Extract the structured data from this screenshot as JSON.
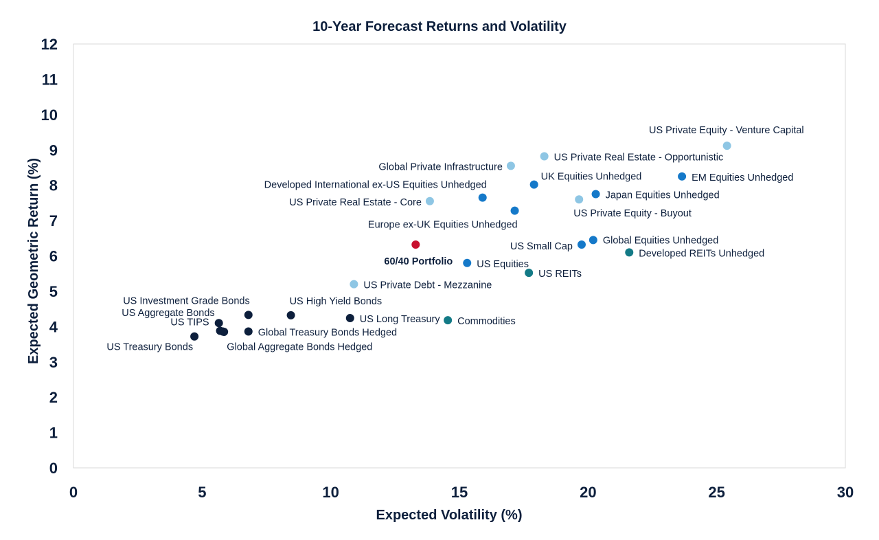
{
  "chart_data": {
    "type": "scatter",
    "title": "10-Year Forecast Returns and Volatility",
    "xlabel": "Expected Volatility (%)",
    "ylabel": "Expected Geometric Return (%)",
    "xlim": [
      0,
      30
    ],
    "ylim": [
      0,
      12
    ],
    "x_ticks": [
      "0",
      "5",
      "10",
      "15",
      "20",
      "25",
      "30"
    ],
    "y_ticks": [
      "0",
      "1",
      "2",
      "3",
      "4",
      "5",
      "6",
      "7",
      "8",
      "9",
      "10",
      "11",
      "12"
    ],
    "grid": false,
    "colors": {
      "fixed_income": "#0d1f3c",
      "real_assets": "#137a86",
      "public_equities": "#1579c9",
      "private_markets": "#8ec6e4",
      "portfolio": "#c8102e",
      "text": "#0d1f3c",
      "frame": "#d9d9d9"
    },
    "points": [
      {
        "label": "US Treasury Bonds",
        "x": 4.7,
        "y": 3.72,
        "color_key": "fixed_income",
        "bold": false
      },
      {
        "label": "US TIPS",
        "x": 5.7,
        "y": 3.88,
        "color_key": "fixed_income",
        "bold": false
      },
      {
        "label": "",
        "x": 5.85,
        "y": 3.85,
        "color_key": "fixed_income",
        "bold": false
      },
      {
        "label": "US Aggregate Bonds",
        "x": 5.65,
        "y": 4.1,
        "color_key": "fixed_income",
        "bold": false
      },
      {
        "label": "US Investment Grade Bonds",
        "x": 6.8,
        "y": 4.33,
        "color_key": "fixed_income",
        "bold": false
      },
      {
        "label": "Global Treasury Bonds Hedged",
        "x": 6.8,
        "y": 3.86,
        "color_key": "fixed_income",
        "bold": false
      },
      {
        "label": "Global Aggregate Bonds Hedged",
        "x": 5.8,
        "y": 3.86,
        "color_key": "fixed_income",
        "bold": false
      },
      {
        "label": "US High Yield Bonds",
        "x": 8.45,
        "y": 4.32,
        "color_key": "fixed_income",
        "bold": false
      },
      {
        "label": "US Long Treasury",
        "x": 10.75,
        "y": 4.24,
        "color_key": "fixed_income",
        "bold": false
      },
      {
        "label": "Commodities",
        "x": 14.55,
        "y": 4.18,
        "color_key": "real_assets",
        "bold": false
      },
      {
        "label": "US Private Debt - Mezzanine",
        "x": 10.9,
        "y": 5.2,
        "color_key": "private_markets",
        "bold": false
      },
      {
        "label": "60/40 Portfolio",
        "x": 13.3,
        "y": 6.32,
        "color_key": "portfolio",
        "bold": true
      },
      {
        "label": "US Equities",
        "x": 15.3,
        "y": 5.8,
        "color_key": "public_equities",
        "bold": false
      },
      {
        "label": "US REITs",
        "x": 17.7,
        "y": 5.52,
        "color_key": "real_assets",
        "bold": false
      },
      {
        "label": "US Small Cap",
        "x": 19.75,
        "y": 6.32,
        "color_key": "public_equities",
        "bold": false
      },
      {
        "label": "Global Equities Unhedged",
        "x": 20.2,
        "y": 6.45,
        "color_key": "public_equities",
        "bold": false
      },
      {
        "label": "Developed REITs Unhedged",
        "x": 21.6,
        "y": 6.1,
        "color_key": "real_assets",
        "bold": false
      },
      {
        "label": "US Private Real Estate - Core",
        "x": 13.85,
        "y": 7.55,
        "color_key": "private_markets",
        "bold": false
      },
      {
        "label": "Developed International ex-US Equities Unhedged",
        "x": 15.9,
        "y": 7.65,
        "color_key": "public_equities",
        "bold": false
      },
      {
        "label": "Europe ex-UK Equities Unhedged",
        "x": 17.15,
        "y": 7.28,
        "color_key": "public_equities",
        "bold": false
      },
      {
        "label": "Global Private Infrastructure",
        "x": 17.0,
        "y": 8.55,
        "color_key": "private_markets",
        "bold": false
      },
      {
        "label": "UK Equities Unhedged",
        "x": 17.9,
        "y": 8.02,
        "color_key": "public_equities",
        "bold": false
      },
      {
        "label": "US Private Real Estate - Opportunistic",
        "x": 18.3,
        "y": 8.82,
        "color_key": "private_markets",
        "bold": false
      },
      {
        "label": "US Private Equity - Buyout",
        "x": 19.65,
        "y": 7.6,
        "color_key": "private_markets",
        "bold": false
      },
      {
        "label": "Japan Equities Unhedged",
        "x": 20.3,
        "y": 7.75,
        "color_key": "public_equities",
        "bold": false
      },
      {
        "label": "EM Equities Unhedged",
        "x": 23.65,
        "y": 8.25,
        "color_key": "public_equities",
        "bold": false
      },
      {
        "label": "US Private Equity - Venture Capital",
        "x": 25.4,
        "y": 9.12,
        "color_key": "private_markets",
        "bold": false
      }
    ]
  }
}
